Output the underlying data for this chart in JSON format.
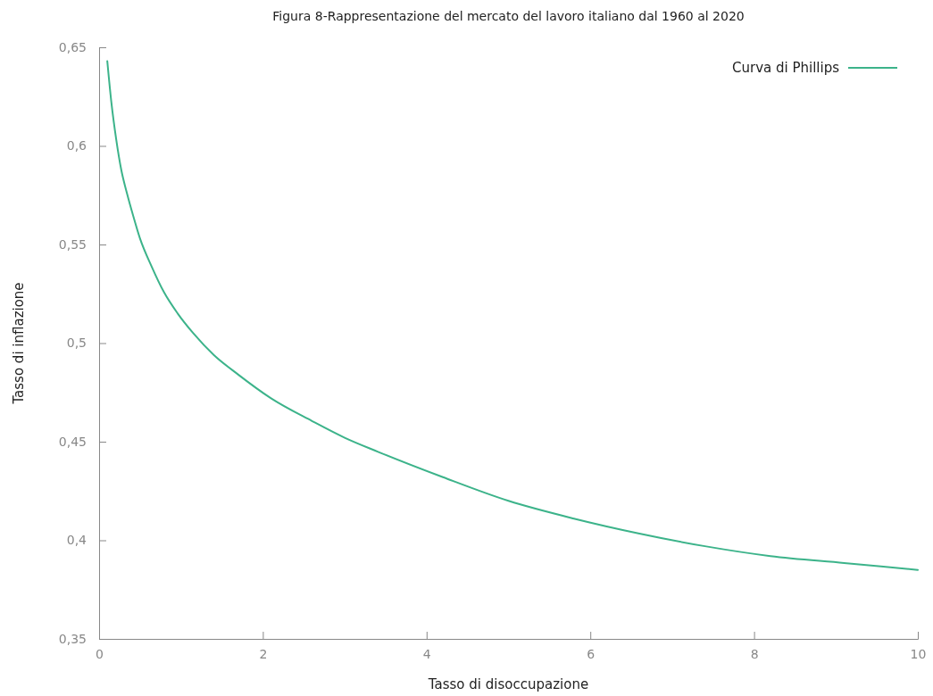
{
  "chart_data": {
    "type": "line",
    "title": "Figura 8-Rappresentazione del mercato del lavoro italiano dal 1960 al 2020",
    "xlabel": "Tasso di disoccupazione",
    "ylabel": "Tasso di inflazione",
    "xlim": [
      0,
      10
    ],
    "xticks": [
      0,
      2,
      4,
      6,
      8,
      10
    ],
    "ylim": [
      0.35,
      0.65
    ],
    "yticks": [
      {
        "value": 0.35,
        "label": "0,35"
      },
      {
        "value": 0.4,
        "label": "0,4"
      },
      {
        "value": 0.45,
        "label": "0,45"
      },
      {
        "value": 0.5,
        "label": "0,5"
      },
      {
        "value": 0.55,
        "label": "0,55"
      },
      {
        "value": 0.6,
        "label": "0,6"
      },
      {
        "value": 0.65,
        "label": "0,65"
      }
    ],
    "legend": "top right",
    "grid": false,
    "marker": "none",
    "line_style": "solid",
    "series": [
      {
        "name": "Curva di Phillips",
        "color": "#3cb38a",
        "x": [
          0.1,
          0.15,
          0.21,
          0.27,
          0.34,
          0.42,
          0.5,
          0.64,
          0.79,
          0.96,
          1.15,
          1.4,
          1.7,
          2.1,
          2.6,
          3.0,
          3.4,
          4.2,
          5.0,
          5.8,
          6.6,
          7.4,
          8.2,
          9.1,
          10
        ],
        "values": [
          0.643,
          0.622,
          0.603,
          0.588,
          0.576,
          0.564,
          0.553,
          0.539,
          0.526,
          0.515,
          0.505,
          0.494,
          0.484,
          0.472,
          0.4605,
          0.452,
          0.445,
          0.432,
          0.42,
          0.411,
          0.4034,
          0.397,
          0.392,
          0.3885,
          0.385
        ]
      }
    ]
  }
}
